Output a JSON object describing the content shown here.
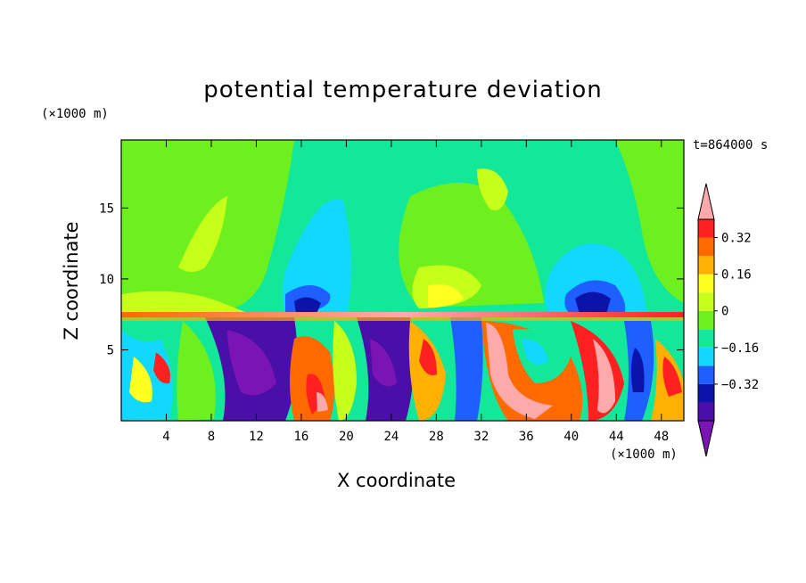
{
  "chart_data": {
    "type": "heatmap",
    "title": "potential temperature deviation",
    "xlabel": "X coordinate",
    "ylabel": "Z coordinate",
    "x_unit": "(×1000 m)",
    "y_unit": "(×1000 m)",
    "time_label": "t=864000 s",
    "xlim": [
      0,
      50
    ],
    "ylim": [
      0,
      19.8
    ],
    "x_ticks": [
      4,
      8,
      12,
      16,
      20,
      24,
      28,
      32,
      36,
      40,
      44,
      48
    ],
    "y_ticks": [
      5,
      10,
      15
    ],
    "colorbar": {
      "levels": [
        -0.48,
        -0.4,
        -0.32,
        -0.24,
        -0.16,
        -0.08,
        0,
        0.08,
        0.16,
        0.24,
        0.32,
        0.4
      ],
      "tick_labels": [
        "0.32",
        "0.16",
        "0",
        "−0.16",
        "−0.32"
      ],
      "tick_values": [
        0.32,
        0.16,
        0,
        -0.16,
        -0.32
      ],
      "colors": [
        "#7b14b5",
        "#4a0fa8",
        "#0a14a8",
        "#1f5eff",
        "#12d8ff",
        "#13e89a",
        "#6ef01e",
        "#c6ff1a",
        "#ffff20",
        "#ffb000",
        "#ff6a00",
        "#ff2020",
        "#ffaaaa"
      ]
    }
  }
}
